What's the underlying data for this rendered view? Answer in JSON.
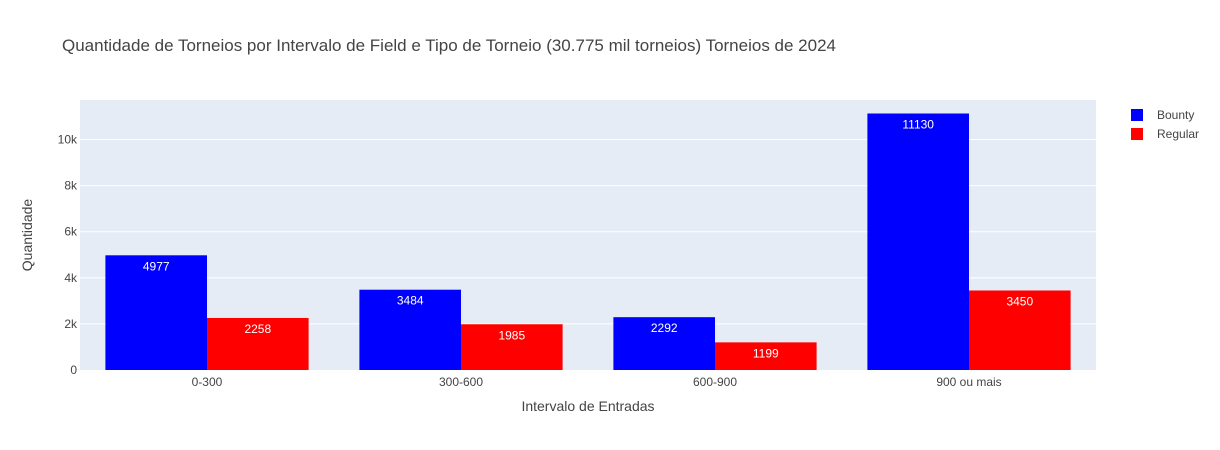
{
  "chart_data": {
    "type": "bar",
    "title": "Quantidade de Torneios por Intervalo de Field e Tipo de Torneio (30.775 mil torneios) Torneios de 2024",
    "xlabel": "Intervalo de Entradas",
    "ylabel": "Quantidade",
    "categories": [
      "0-300",
      "300-600",
      "600-900",
      "900 ou mais"
    ],
    "series": [
      {
        "name": "Bounty",
        "color": "#0000ff",
        "values": [
          4977,
          3484,
          2292,
          11130
        ]
      },
      {
        "name": "Regular",
        "color": "#ff0000",
        "values": [
          2258,
          1985,
          1199,
          3450
        ]
      }
    ],
    "ylim": [
      0,
      11716
    ],
    "yticks": [
      0,
      2000,
      4000,
      6000,
      8000,
      10000
    ],
    "ytick_labels": [
      "0",
      "2k",
      "4k",
      "6k",
      "8k",
      "10k"
    ],
    "grid": true,
    "plot_background": "#e5ecf6",
    "legend_position": "top-right"
  }
}
